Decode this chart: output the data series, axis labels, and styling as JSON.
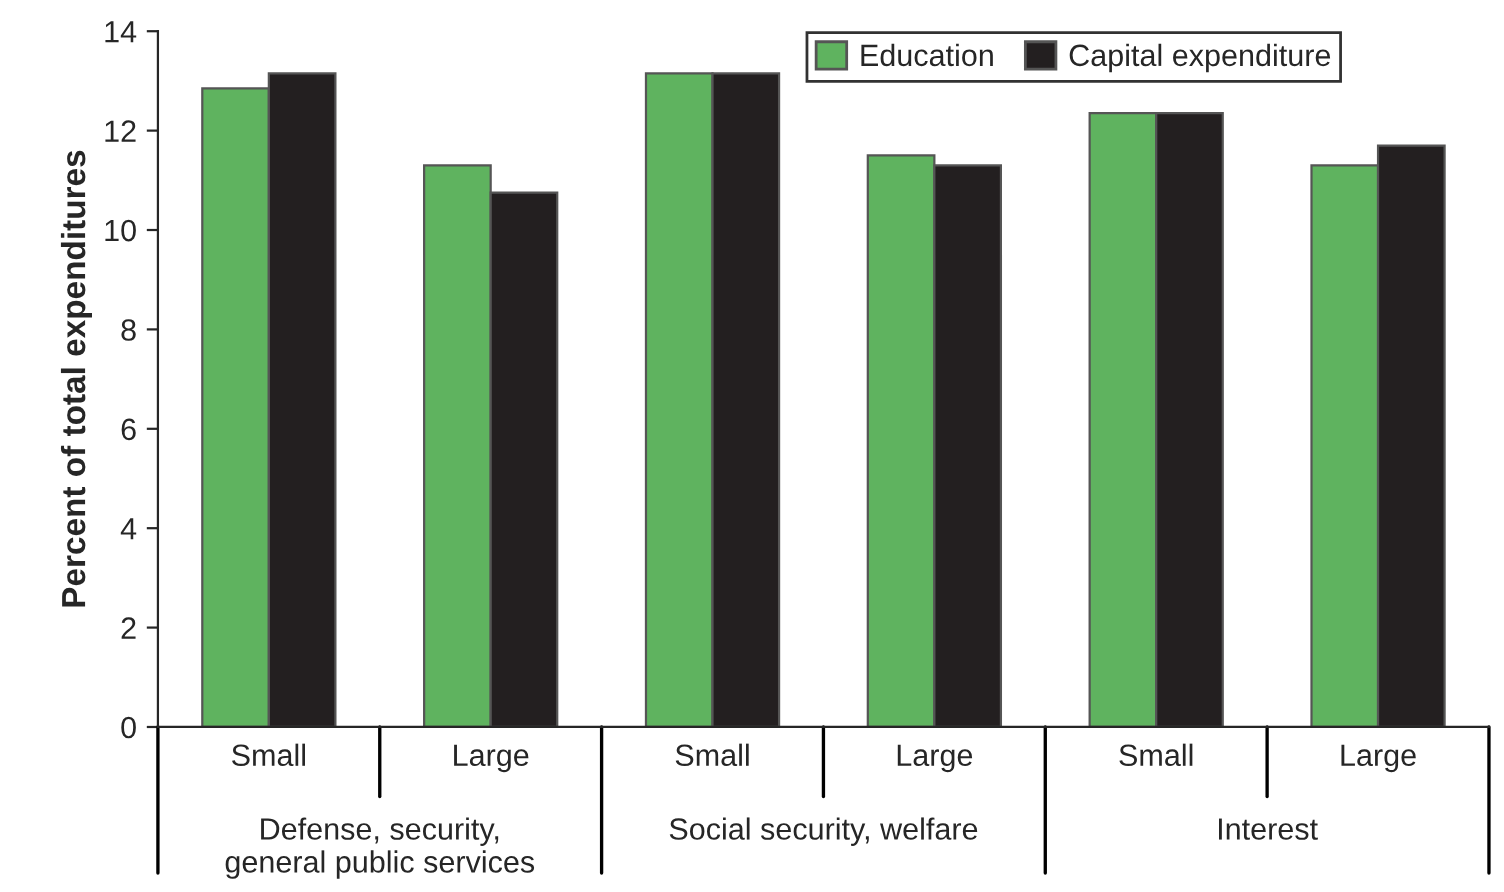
{
  "chart_data": {
    "type": "bar",
    "categories": [
      "Small",
      "Large",
      "Small",
      "Large",
      "Small",
      "Large"
    ],
    "series": [
      {
        "name": "Education",
        "color": "#5fb35f",
        "values": [
          12.85,
          11.3,
          13.15,
          11.5,
          12.35,
          11.3
        ]
      },
      {
        "name": "Capital expenditure",
        "color": "#231f20",
        "values": [
          13.15,
          10.75,
          13.15,
          11.3,
          12.35,
          11.7
        ]
      }
    ],
    "ylabel": "Percent of total expenditures",
    "ylim": [
      0,
      14
    ],
    "yticks": [
      0,
      2,
      4,
      6,
      8,
      10,
      12,
      14
    ],
    "annotations": [
      "Defense, security,\ngeneral public services",
      "Social security, welfare",
      "Interest"
    ],
    "grid": false,
    "legend": "top right"
  }
}
